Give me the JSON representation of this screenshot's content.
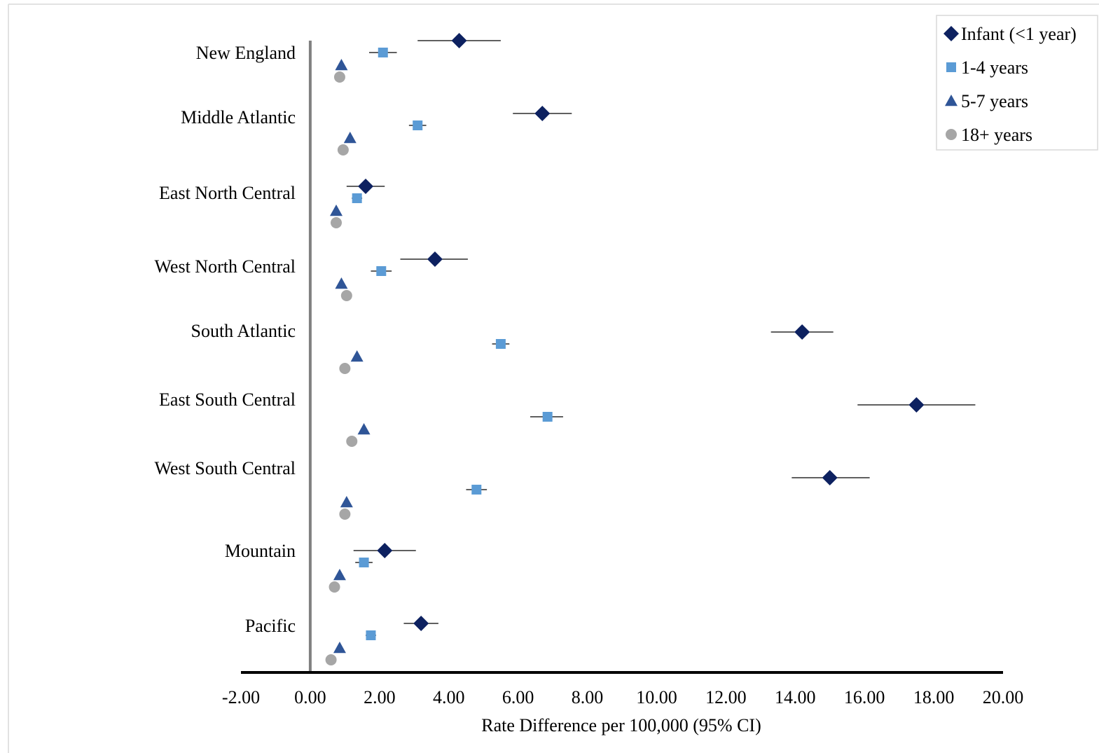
{
  "chart_data": {
    "type": "scatter",
    "title": "",
    "xlabel": "Rate Difference per 100,000 (95% CI)",
    "ylabel": "",
    "xlim": [
      -2,
      20
    ],
    "xticks": [
      "-2.00",
      "0.00",
      "2.00",
      "4.00",
      "6.00",
      "8.00",
      "10.00",
      "12.00",
      "14.00",
      "16.00",
      "18.00",
      "20.00"
    ],
    "categories": [
      "New England",
      "Middle Atlantic",
      "East North Central",
      "West North Central",
      "South Atlantic",
      "East South Central",
      "West South Central",
      "Mountain",
      "Pacific"
    ],
    "legend_position": "top-right",
    "grid": false,
    "series": [
      {
        "name": "Infant (<1 year)",
        "marker": "diamond",
        "color": "#0d2160",
        "values": [
          4.3,
          6.7,
          1.6,
          3.6,
          14.2,
          17.5,
          15.0,
          2.15,
          3.2
        ],
        "ci_low": [
          3.1,
          5.85,
          1.05,
          2.6,
          13.3,
          15.8,
          13.9,
          1.25,
          2.7
        ],
        "ci_high": [
          5.5,
          7.55,
          2.15,
          4.55,
          15.1,
          19.2,
          16.15,
          3.05,
          3.7
        ]
      },
      {
        "name": "1-4 years",
        "marker": "square",
        "color": "#5b9bd5",
        "values": [
          2.1,
          3.1,
          1.35,
          2.05,
          5.5,
          6.85,
          4.8,
          1.55,
          1.75
        ],
        "ci_low": [
          1.7,
          2.85,
          1.2,
          1.75,
          5.25,
          6.35,
          4.5,
          1.3,
          1.6
        ],
        "ci_high": [
          2.5,
          3.35,
          1.5,
          2.35,
          5.75,
          7.3,
          5.1,
          1.8,
          1.9
        ]
      },
      {
        "name": "5-7 years",
        "marker": "triangle",
        "color": "#2f5597",
        "values": [
          0.9,
          1.15,
          0.75,
          0.9,
          1.35,
          1.55,
          1.05,
          0.85,
          0.85
        ]
      },
      {
        "name": "18+ years",
        "marker": "circle",
        "color": "#a6a6a6",
        "values": [
          0.85,
          0.95,
          0.75,
          1.05,
          1.0,
          1.2,
          1.0,
          0.7,
          0.6
        ]
      }
    ]
  }
}
